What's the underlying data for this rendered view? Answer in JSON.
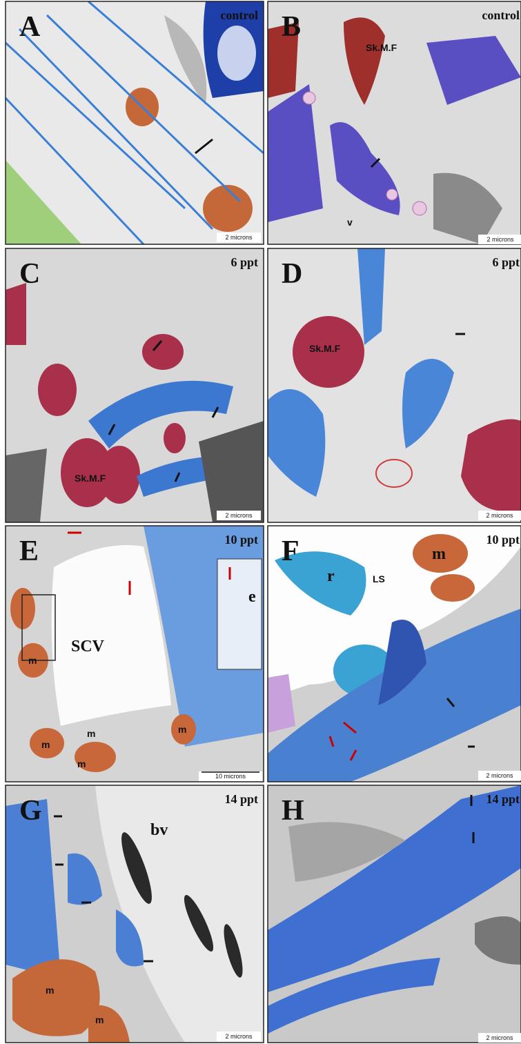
{
  "panels": [
    {
      "letter": "A",
      "condition": "control",
      "scale": "2 microns",
      "labels": []
    },
    {
      "letter": "B",
      "condition": "control",
      "scale": "2 microns",
      "labels": [
        "Sk.M.F",
        "v"
      ]
    },
    {
      "letter": "C",
      "condition": "6 ppt",
      "scale": "2 microns",
      "labels": [
        "Sk.M.F"
      ]
    },
    {
      "letter": "D",
      "condition": "6 ppt",
      "scale": "2 microns",
      "labels": [
        "Sk.M.F"
      ]
    },
    {
      "letter": "E",
      "condition": "10 ppt",
      "scale": "10 microns",
      "labels": [
        "SCV",
        "m",
        "m",
        "m",
        "m",
        "m",
        "e"
      ]
    },
    {
      "letter": "F",
      "condition": "10 ppt",
      "scale": "2 microns",
      "labels": [
        "r",
        "LS",
        "m"
      ]
    },
    {
      "letter": "G",
      "condition": "14 ppt",
      "scale": "2 microns",
      "labels": [
        "bv",
        "m",
        "m"
      ]
    },
    {
      "letter": "H",
      "condition": "14 ppt",
      "scale": "2 microns",
      "labels": []
    }
  ]
}
